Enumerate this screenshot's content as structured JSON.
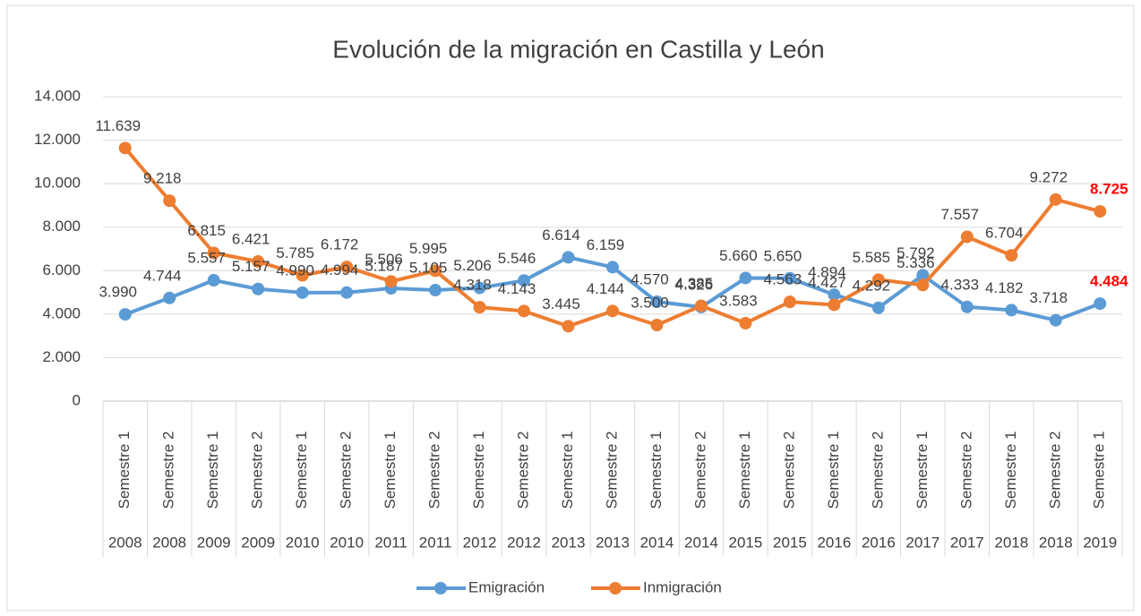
{
  "chart_data": {
    "type": "line",
    "title": "Evolución de la migración en Castilla y León",
    "categories": [
      "Semestre 1",
      "Semestre 2",
      "Semestre 1",
      "Semestre 2",
      "Semestre 1",
      "Semestre 2",
      "Semestre 1",
      "Semestre 2",
      "Semestre 1",
      "Semestre 2",
      "Semestre 1",
      "Semestre 2",
      "Semestre 1",
      "Semestre 2",
      "Semestre 1",
      "Semestre 2",
      "Semestre 1",
      "Semestre 2",
      "Semestre 1",
      "Semestre 2",
      "Semestre 1",
      "Semestre 2",
      "Semestre 1"
    ],
    "years": [
      "2008",
      "2008",
      "2009",
      "2009",
      "2010",
      "2010",
      "2011",
      "2011",
      "2012",
      "2012",
      "2013",
      "2013",
      "2014",
      "2014",
      "2015",
      "2015",
      "2016",
      "2016",
      "2017",
      "2017",
      "2018",
      "2018",
      "2019"
    ],
    "series": [
      {
        "name": "Emigración",
        "color": "#5b9bd5",
        "values": [
          3990,
          4744,
          5557,
          5157,
          4990,
          4994,
          5187,
          5105,
          5206,
          5546,
          6614,
          6159,
          4570,
          4326,
          5660,
          5650,
          4894,
          4292,
          5792,
          4333,
          4182,
          3718,
          4484
        ],
        "value_labels": [
          "3.990",
          "4.744",
          "5.557",
          "5.157",
          "4.990",
          "4.994",
          "5.187",
          "5.105",
          "5.206",
          "5.546",
          "6.614",
          "6.159",
          "4.570",
          "4.326",
          "5.660",
          "5.650",
          "4.894",
          "4.292",
          "5.792",
          "4.333",
          "4.182",
          "3.718",
          "4.484"
        ],
        "last_label_color": "#ff0000"
      },
      {
        "name": "Inmigración",
        "color": "#ed7d31",
        "values": [
          11639,
          9218,
          6815,
          6421,
          5785,
          6172,
          5506,
          5995,
          4318,
          4143,
          3445,
          4144,
          3500,
          4385,
          3583,
          4563,
          4427,
          5585,
          5336,
          7557,
          6704,
          9272,
          8725
        ],
        "value_labels": [
          "11.639",
          "9.218",
          "6.815",
          "6.421",
          "5.785",
          "6.172",
          "5.506",
          "5.995",
          "4.318",
          "4.143",
          "3.445",
          "4.144",
          "3.500",
          "4.385",
          "3.583",
          "4.563",
          "4.427",
          "5.585",
          "5.336",
          "7.557",
          "6.704",
          "9.272",
          "8.725"
        ],
        "last_label_color": "#ff0000"
      }
    ],
    "ylim": [
      0,
      14000
    ],
    "yticks": [
      0,
      {
        "value": 2000,
        "label": "2.000"
      },
      {
        "value": 4000,
        "label": "4.000"
      },
      {
        "value": 6000,
        "label": "6.000"
      },
      {
        "value": 8000,
        "label": "8.000"
      },
      {
        "value": 10000,
        "label": "10.000"
      },
      {
        "value": 12000,
        "label": "12.000"
      },
      {
        "value": 14000,
        "label": "14.000"
      }
    ],
    "grid": true,
    "legend": "bottom"
  }
}
